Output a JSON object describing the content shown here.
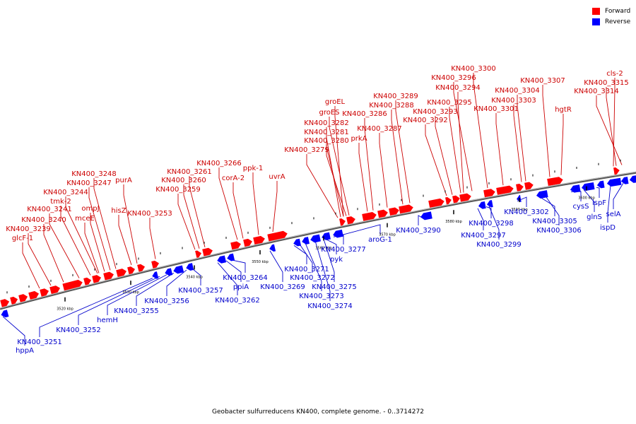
{
  "legend": [
    {
      "label": "Forward",
      "color": "#ff0000"
    },
    {
      "label": "Reverse",
      "color": "#0000ff"
    }
  ],
  "caption": "Geobacter sulfurreducens KN400, complete genome. - 0..3714272",
  "colors": {
    "forward": "#ff0000",
    "reverse": "#0000ff",
    "backbone": "#888888"
  },
  "ticks": [
    "3520 kbp",
    "3530 kbp",
    "3540 kbp",
    "3550 kbp",
    "3560 kbp",
    "3570 kbp",
    "3580 kbp",
    "3590 kbp",
    "3600 kbp"
  ],
  "forward_labels": [
    "KN400_3300",
    "KN400_3296",
    "KN400_3294",
    "KN400_3307",
    "KN400_3304",
    "cls-2",
    "KN400_3315",
    "KN400_3289",
    "KN400_3288",
    "KN400_3295",
    "KN400_3303",
    "KN400_3314",
    "groEL",
    "KN400_3286",
    "KN400_3293",
    "KN400_3301",
    "groES",
    "KN400_3292",
    "hgtR",
    "KN400_3282",
    "KN400_3287",
    "KN400_3281",
    "prkA",
    "KN400_3280",
    "KN400_3279",
    "KN400_3266",
    "ppk-1",
    "KN400_3261",
    "corA-2",
    "uvrA",
    "KN400_3260",
    "KN400_3259",
    "KN400_3248",
    "KN400_3247",
    "KN400_3244",
    "purA",
    "tmk-2",
    "hisZ",
    "KN400_3253",
    "ompJ",
    "KN400_3241",
    "mceE",
    "KN400_3240",
    "KN400_3239",
    "glcF-1"
  ],
  "reverse_labels": [
    "hppA",
    "KN400_3251",
    "KN400_3252",
    "hemH",
    "KN400_3255",
    "KN400_3256",
    "KN400_3257",
    "KN400_3262",
    "ppiA",
    "KN400_3264",
    "KN400_3269",
    "KN400_3271",
    "KN400_3272",
    "KN400_3273",
    "KN400_3274",
    "KN400_3275",
    "pyk",
    "KN400_3277",
    "aroG-1",
    "KN400_3290",
    "KN400_3297",
    "KN400_3298",
    "KN400_3299",
    "KN400_3302",
    "KN400_3305",
    "KN400_3306",
    "cysS",
    "glnS",
    "ispF",
    "ispD",
    "selA"
  ]
}
